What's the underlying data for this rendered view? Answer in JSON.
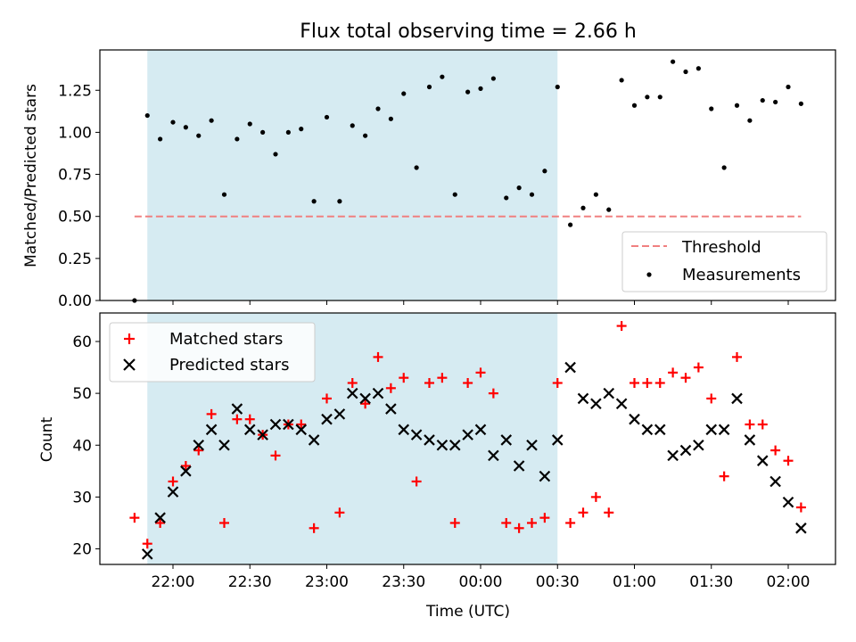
{
  "title": "Flux total observing time = 2.66 h",
  "chart_data": [
    {
      "type": "scatter",
      "ylabel": "Matched/Predicted stars",
      "ylim": [
        0,
        1.49
      ],
      "yticks": [
        0.0,
        0.25,
        0.5,
        0.75,
        1.0,
        1.25
      ],
      "ytick_labels": [
        "0.00",
        "0.25",
        "0.50",
        "0.75",
        "1.00",
        "1.25"
      ],
      "shaded_region": {
        "x": [
          "21:50",
          "00:30"
        ],
        "color": "#add8e6"
      },
      "legend": {
        "position": "lower-right",
        "entries": [
          "Threshold",
          "Measurements"
        ]
      },
      "threshold": {
        "name": "Threshold",
        "y": 0.5,
        "x": [
          "21:45",
          "02:05"
        ],
        "color": "#f08080",
        "style": "dashed"
      },
      "series": [
        {
          "name": "Measurements",
          "marker": "dot",
          "color": "#000000",
          "x": [
            "21:45",
            "21:50",
            "21:55",
            "22:00",
            "22:05",
            "22:10",
            "22:15",
            "22:20",
            "22:25",
            "22:30",
            "22:35",
            "22:40",
            "22:45",
            "22:50",
            "22:55",
            "23:00",
            "23:05",
            "23:10",
            "23:15",
            "23:20",
            "23:25",
            "23:30",
            "23:35",
            "23:40",
            "23:45",
            "23:50",
            "23:55",
            "00:00",
            "00:05",
            "00:10",
            "00:15",
            "00:20",
            "00:25",
            "00:30",
            "00:35",
            "00:40",
            "00:45",
            "00:50",
            "00:55",
            "01:00",
            "01:05",
            "01:10",
            "01:15",
            "01:20",
            "01:25",
            "01:30",
            "01:35",
            "01:40",
            "01:45",
            "01:50",
            "01:55",
            "02:00",
            "02:05"
          ],
          "y": [
            0.0,
            1.1,
            0.96,
            1.06,
            1.03,
            0.98,
            1.07,
            0.63,
            0.96,
            1.05,
            1.0,
            0.87,
            1.0,
            1.02,
            0.59,
            1.09,
            0.59,
            1.04,
            0.98,
            1.14,
            1.08,
            1.23,
            0.79,
            1.27,
            1.33,
            0.63,
            1.24,
            1.26,
            1.32,
            0.61,
            0.67,
            0.63,
            0.77,
            1.27,
            0.45,
            0.55,
            0.63,
            0.54,
            1.31,
            1.16,
            1.21,
            1.21,
            1.42,
            1.36,
            1.38,
            1.14,
            0.79,
            1.16,
            1.07,
            1.19,
            1.18,
            1.27,
            1.17
          ]
        }
      ]
    },
    {
      "type": "scatter",
      "xlabel": "Time (UTC)",
      "ylabel": "Count",
      "ylim": [
        17,
        65.5
      ],
      "yticks": [
        20,
        30,
        40,
        50,
        60
      ],
      "ytick_labels": [
        "20",
        "30",
        "40",
        "50",
        "60"
      ],
      "xticks": [
        "22:00",
        "22:30",
        "23:00",
        "23:30",
        "00:00",
        "00:30",
        "01:00",
        "01:30",
        "02:00"
      ],
      "shaded_region": {
        "x": [
          "21:50",
          "00:30"
        ],
        "color": "#add8e6"
      },
      "legend": {
        "position": "top-left",
        "entries": [
          "Matched stars",
          "Predicted stars"
        ]
      },
      "series": [
        {
          "name": "Matched stars",
          "marker": "plus",
          "color": "#ff0000",
          "x": [
            "21:45",
            "21:50",
            "21:55",
            "22:00",
            "22:05",
            "22:10",
            "22:15",
            "22:20",
            "22:25",
            "22:30",
            "22:35",
            "22:40",
            "22:45",
            "22:50",
            "22:55",
            "23:00",
            "23:05",
            "23:10",
            "23:15",
            "23:20",
            "23:25",
            "23:30",
            "23:35",
            "23:40",
            "23:45",
            "23:50",
            "23:55",
            "00:00",
            "00:05",
            "00:10",
            "00:15",
            "00:20",
            "00:25",
            "00:30",
            "00:35",
            "00:40",
            "00:45",
            "00:50",
            "00:55",
            "01:00",
            "01:05",
            "01:10",
            "01:15",
            "01:20",
            "01:25",
            "01:30",
            "01:35",
            "01:40",
            "01:45",
            "01:50",
            "01:55",
            "02:00",
            "02:05"
          ],
          "y": [
            26,
            21,
            25,
            33,
            36,
            39,
            46,
            25,
            45,
            45,
            42,
            38,
            44,
            44,
            24,
            49,
            27,
            52,
            48,
            57,
            51,
            53,
            33,
            52,
            53,
            25,
            52,
            54,
            50,
            25,
            24,
            25,
            26,
            52,
            25,
            27,
            30,
            27,
            63,
            52,
            52,
            52,
            54,
            53,
            55,
            49,
            34,
            57,
            44,
            44,
            39,
            37,
            28
          ]
        },
        {
          "name": "Predicted stars",
          "marker": "x",
          "color": "#000000",
          "x": [
            "21:50",
            "21:55",
            "22:00",
            "22:05",
            "22:10",
            "22:15",
            "22:20",
            "22:25",
            "22:30",
            "22:35",
            "22:40",
            "22:45",
            "22:50",
            "22:55",
            "23:00",
            "23:05",
            "23:10",
            "23:15",
            "23:20",
            "23:25",
            "23:30",
            "23:35",
            "23:40",
            "23:45",
            "23:50",
            "23:55",
            "00:00",
            "00:05",
            "00:10",
            "00:15",
            "00:20",
            "00:25",
            "00:30",
            "00:35",
            "00:40",
            "00:45",
            "00:50",
            "00:55",
            "01:00",
            "01:05",
            "01:10",
            "01:15",
            "01:20",
            "01:25",
            "01:30",
            "01:35",
            "01:40",
            "01:45",
            "01:50",
            "01:55",
            "02:00",
            "02:05"
          ],
          "y": [
            19,
            26,
            31,
            35,
            40,
            43,
            40,
            47,
            43,
            42,
            44,
            44,
            43,
            41,
            45,
            46,
            50,
            49,
            50,
            47,
            43,
            42,
            41,
            40,
            40,
            42,
            43,
            38,
            41,
            36,
            40,
            34,
            41,
            55,
            49,
            48,
            50,
            48,
            45,
            43,
            43,
            38,
            39,
            40,
            43,
            43,
            49,
            41,
            37,
            33,
            29,
            24
          ]
        }
      ]
    }
  ]
}
